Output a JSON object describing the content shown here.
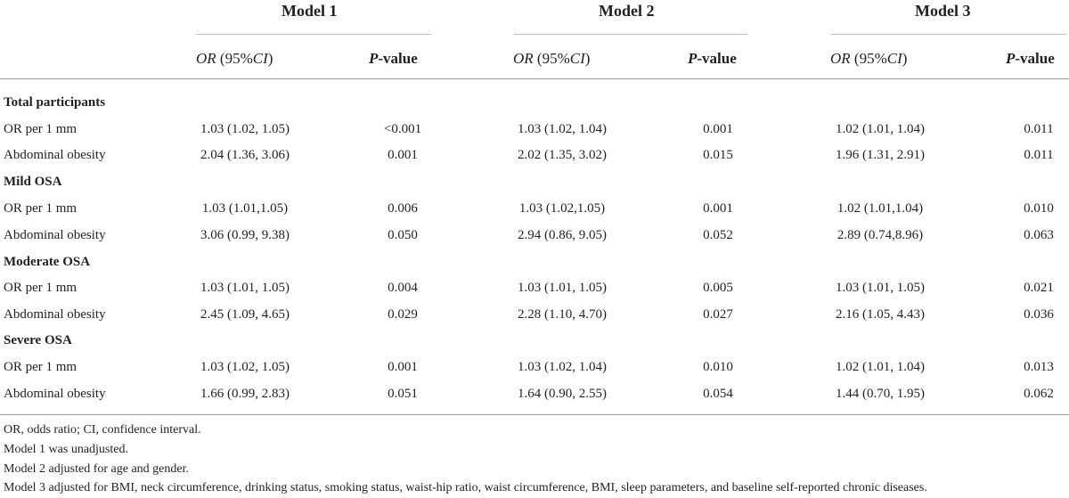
{
  "models": [
    "Model 1",
    "Model 2",
    "Model 3"
  ],
  "col_headers": {
    "or_italic": "OR",
    "or_rest": " (95%",
    "ci_italic": "CI",
    "close_paren": ")",
    "p_italic": "P",
    "p_rest": "-value"
  },
  "groups": [
    {
      "title": "Total participants",
      "rows": [
        {
          "label": "OR per 1 mm",
          "values": [
            "1.03 (1.02, 1.05)",
            "<0.001",
            "1.03 (1.02, 1.04)",
            "0.001",
            "1.02 (1.01, 1.04)",
            "0.011"
          ]
        },
        {
          "label": "Abdominal obesity",
          "values": [
            "2.04 (1.36, 3.06)",
            "0.001",
            "2.02 (1.35, 3.02)",
            "0.015",
            "1.96 (1.31, 2.91)",
            "0.011"
          ]
        }
      ]
    },
    {
      "title": "Mild OSA",
      "rows": [
        {
          "label": "OR per 1 mm",
          "values": [
            "1.03 (1.01,1.05)",
            "0.006",
            "1.03 (1.02,1.05)",
            "0.001",
            "1.02 (1.01,1.04)",
            "0.010"
          ]
        },
        {
          "label": "Abdominal obesity",
          "values": [
            "3.06 (0.99, 9.38)",
            "0.050",
            "2.94 (0.86, 9.05)",
            "0.052",
            "2.89 (0.74,8.96)",
            "0.063"
          ]
        }
      ]
    },
    {
      "title": "Moderate OSA",
      "rows": [
        {
          "label": "OR per 1 mm",
          "values": [
            "1.03 (1.01, 1.05)",
            "0.004",
            "1.03 (1.01, 1.05)",
            "0.005",
            "1.03 (1.01, 1.05)",
            "0.021"
          ]
        },
        {
          "label": "Abdominal obesity",
          "values": [
            "2.45 (1.09, 4.65)",
            "0.029",
            "2.28 (1.10, 4.70)",
            "0.027",
            "2.16 (1.05, 4.43)",
            "0.036"
          ]
        }
      ]
    },
    {
      "title": "Severe OSA",
      "rows": [
        {
          "label": "OR per 1 mm",
          "values": [
            "1.03 (1.02, 1.05)",
            "0.001",
            "1.03 (1.02, 1.04)",
            "0.010",
            "1.02 (1.01, 1.04)",
            "0.013"
          ]
        },
        {
          "label": "Abdominal obesity",
          "values": [
            "1.66 (0.99, 2.83)",
            "0.051",
            "1.64 (0.90, 2.55)",
            "0.054",
            "1.44 (0.70, 1.95)",
            "0.062"
          ]
        }
      ]
    }
  ],
  "footnotes": [
    "OR, odds ratio; CI, confidence interval.",
    "Model 1 was unadjusted.",
    "Model 2 adjusted for age and gender.",
    "Model 3 adjusted for BMI, neck circumference, drinking status, smoking status, waist-hip ratio, waist circumference, BMI, sleep parameters, and baseline self-reported chronic diseases."
  ]
}
